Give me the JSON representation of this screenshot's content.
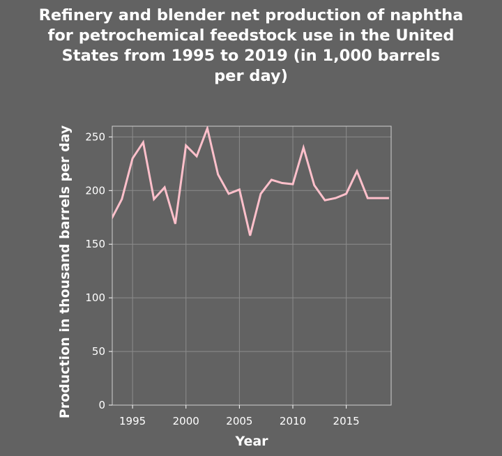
{
  "chart_data": {
    "type": "line",
    "title_lines": [
      "Refinery and blender net production of naphtha",
      "for petrochemical feedstock use in the United",
      "States from 1995 to 2019 (in 1,000 barrels",
      "per day)"
    ],
    "xlabel": "Year",
    "ylabel": "Production in thousand barrels per day",
    "xlim": [
      1993.1,
      2019.2
    ],
    "ylim": [
      0,
      260
    ],
    "x_ticks": [
      1995,
      2000,
      2005,
      2010,
      2015
    ],
    "y_ticks": [
      0,
      50,
      100,
      150,
      200,
      250
    ],
    "grid": true,
    "line_color": "#ffc0cb",
    "series": [
      {
        "x": [
          1993,
          1994,
          1995,
          1996,
          1997,
          1998,
          1999,
          2000,
          2001,
          2002,
          2003,
          2004,
          2005,
          2006,
          2007,
          2008,
          2009,
          2010,
          2011,
          2012,
          2013,
          2014,
          2015,
          2016,
          2017,
          2018,
          2019
        ],
        "values": [
          173,
          192,
          230,
          245,
          192,
          203,
          169,
          242,
          232,
          258,
          215,
          197,
          201,
          158,
          197,
          210,
          207,
          206,
          240,
          205,
          191,
          193,
          197,
          218,
          193,
          193,
          193
        ]
      }
    ]
  }
}
